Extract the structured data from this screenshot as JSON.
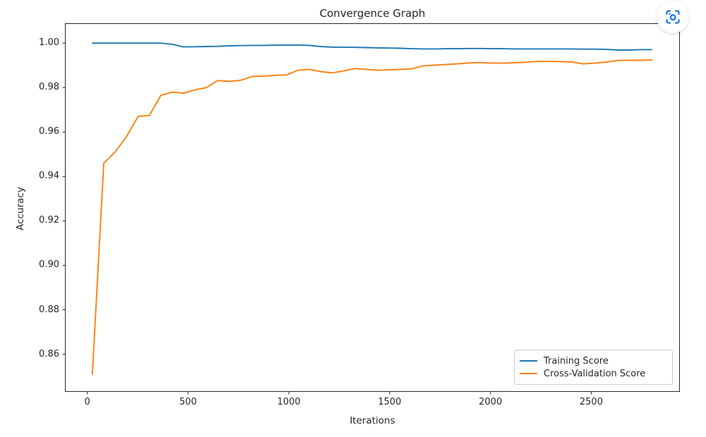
{
  "controls": {
    "capture_button": {
      "icon": "region-capture-icon",
      "color": "#1a73e8"
    }
  },
  "colors": {
    "background": "#ffffff",
    "text": "#262626",
    "axis": "#262626",
    "legend_border": "#cccccc",
    "training_line": "#1f77b4",
    "cross_validation_line": "#ff7f0e"
  },
  "chart_data": {
    "type": "line",
    "title": "Convergence Graph",
    "xlabel": "Iterations",
    "ylabel": "Accuracy",
    "grid": false,
    "legend_position": "lower right",
    "axis_color": "#262626",
    "x_ticks": [
      0,
      500,
      1000,
      1500,
      2000,
      2500
    ],
    "y_ticks": [
      0.86,
      0.88,
      0.9,
      0.92,
      0.94,
      0.96,
      0.98,
      1.0
    ],
    "xlim": [
      -109,
      2938
    ],
    "ylim": [
      0.8432,
      1.0088
    ],
    "x": [
      25,
      82,
      138,
      195,
      252,
      308,
      365,
      422,
      478,
      535,
      591,
      648,
      705,
      761,
      818,
      875,
      931,
      988,
      1045,
      1101,
      1158,
      1215,
      1271,
      1328,
      1384,
      1441,
      1498,
      1554,
      1611,
      1668,
      1724,
      1781,
      1838,
      1894,
      1951,
      2008,
      2064,
      2121,
      2178,
      2234,
      2291,
      2347,
      2404,
      2461,
      2517,
      2574,
      2631,
      2687,
      2744,
      2800
    ],
    "series": [
      {
        "name": "Training Score",
        "color": "#1f77b4",
        "values": [
          1.0,
          1.0,
          1.0,
          1.0,
          1.0,
          1.0,
          1.0,
          0.9995,
          0.9983,
          0.9984,
          0.9985,
          0.9986,
          0.9988,
          0.9989,
          0.999,
          0.999,
          0.9991,
          0.9991,
          0.9992,
          0.999,
          0.9985,
          0.9982,
          0.9982,
          0.9981,
          0.998,
          0.9979,
          0.9978,
          0.9977,
          0.9975,
          0.9974,
          0.9974,
          0.9975,
          0.9975,
          0.9976,
          0.9976,
          0.9975,
          0.9975,
          0.9974,
          0.9974,
          0.9974,
          0.9974,
          0.9974,
          0.9974,
          0.9973,
          0.9973,
          0.9972,
          0.9969,
          0.9969,
          0.9971,
          0.9971
        ]
      },
      {
        "name": "Cross-Validation Score",
        "color": "#ff7f0e",
        "values": [
          0.851,
          0.946,
          0.951,
          0.958,
          0.967,
          0.9675,
          0.9765,
          0.978,
          0.9775,
          0.979,
          0.98,
          0.9832,
          0.9828,
          0.9833,
          0.985,
          0.9852,
          0.9855,
          0.9857,
          0.9878,
          0.9882,
          0.9872,
          0.9866,
          0.9875,
          0.9886,
          0.9882,
          0.9878,
          0.988,
          0.9882,
          0.9885,
          0.9898,
          0.9901,
          0.9904,
          0.9907,
          0.9911,
          0.9913,
          0.991,
          0.991,
          0.9912,
          0.9914,
          0.9918,
          0.9918,
          0.9917,
          0.9915,
          0.9907,
          0.991,
          0.9915,
          0.9922,
          0.9923,
          0.9923,
          0.9924
        ]
      }
    ]
  }
}
